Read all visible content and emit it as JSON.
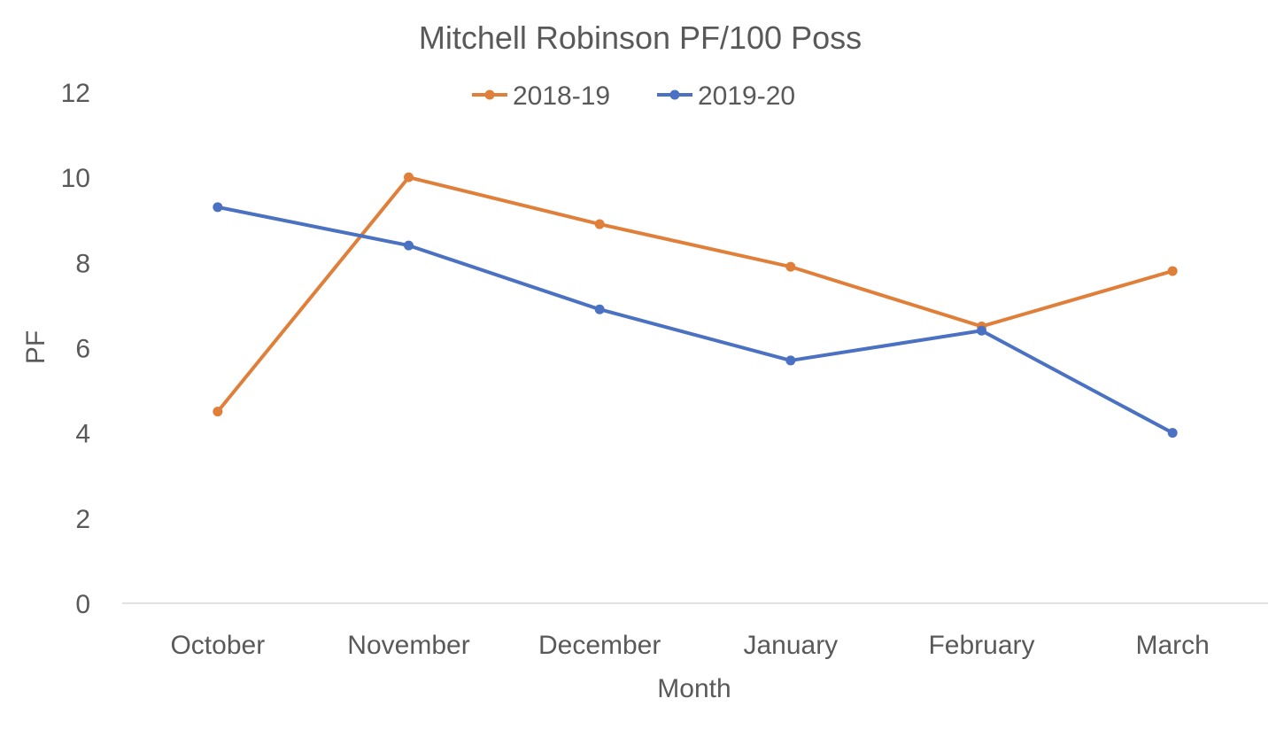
{
  "chart_data": {
    "type": "line",
    "title": "Mitchell Robinson PF/100 Poss",
    "xlabel": "Month",
    "ylabel": "PF",
    "categories": [
      "October",
      "November",
      "December",
      "January",
      "February",
      "March"
    ],
    "ylim": [
      0,
      12
    ],
    "yticks": [
      0,
      2,
      4,
      6,
      8,
      10,
      12
    ],
    "grid": false,
    "legend_position": "top",
    "series": [
      {
        "name": "2018-19",
        "color": "#E07F3A",
        "values": [
          4.5,
          10.0,
          8.9,
          7.9,
          6.5,
          7.8
        ]
      },
      {
        "name": "2019-20",
        "color": "#4A71C2",
        "values": [
          9.3,
          8.4,
          6.9,
          5.7,
          6.4,
          4.0
        ]
      }
    ]
  }
}
